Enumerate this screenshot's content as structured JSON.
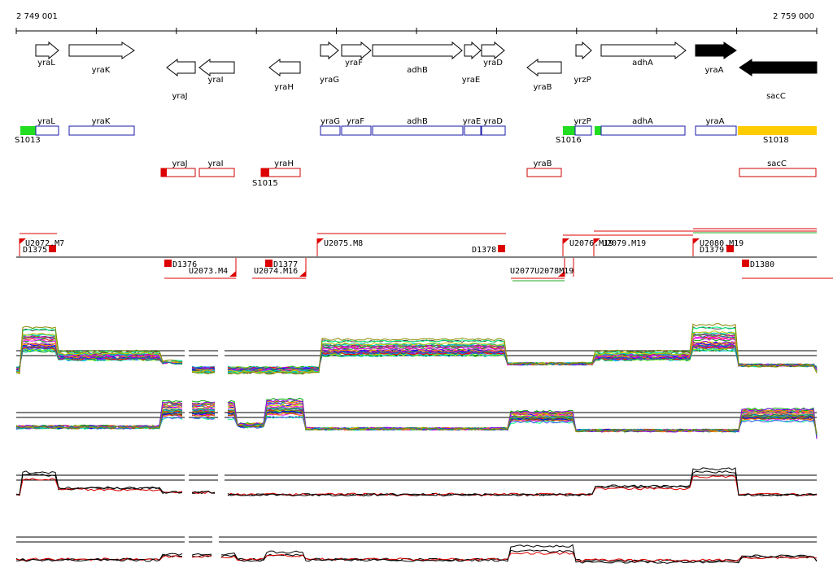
{
  "ruler": {
    "start": "2 749 001",
    "end": "2 759 000"
  },
  "genes": [
    {
      "name": "yraL",
      "strand": "+",
      "color": "white"
    },
    {
      "name": "yraK",
      "strand": "+",
      "color": "white"
    },
    {
      "name": "yraJ",
      "strand": "-",
      "color": "white"
    },
    {
      "name": "yraI",
      "strand": "-",
      "color": "white"
    },
    {
      "name": "yraH",
      "strand": "-",
      "color": "white"
    },
    {
      "name": "yraG",
      "strand": "+",
      "color": "white"
    },
    {
      "name": "yraF",
      "strand": "+",
      "color": "white"
    },
    {
      "name": "adhB",
      "strand": "+",
      "color": "white"
    },
    {
      "name": "yraE",
      "strand": "+",
      "color": "white"
    },
    {
      "name": "yraD",
      "strand": "+",
      "color": "white"
    },
    {
      "name": "yraB",
      "strand": "-",
      "color": "white"
    },
    {
      "name": "yrzP",
      "strand": "+",
      "color": "white"
    },
    {
      "name": "adhA",
      "strand": "+",
      "color": "white"
    },
    {
      "name": "yraA",
      "strand": "+",
      "color": "black"
    },
    {
      "name": "sacC",
      "strand": "-",
      "color": "black"
    }
  ],
  "plus_features": {
    "boxes": [
      "yraL",
      "yraK",
      "yraG",
      "yraF",
      "adhB",
      "yraE",
      "yraD",
      "yrzP",
      "adhA",
      "yraA"
    ],
    "sites": [
      "S1013",
      "S1016",
      "S1018"
    ]
  },
  "minus_features": {
    "boxes": [
      "yraJ",
      "yraI",
      "yraH",
      "yraB",
      "sacC"
    ],
    "sites": [
      "S1015"
    ]
  },
  "transcript_labels": [
    "U2072.M7",
    "D1375",
    "D1376",
    "U2073.M4",
    "D1377",
    "U2074.M16",
    "U2075.M8",
    "D1378",
    "U2077U2078M19",
    "U2076.M19",
    "U2079.M19",
    "U2080.M19",
    "D1379",
    "D1380"
  ],
  "colors": {
    "gene_outline": "#000000",
    "feature_plus": "#1a1aaa",
    "feature_minus": "#cc0000",
    "site_green": "#22dd22",
    "site_orange": "#ffcc00",
    "transcript": "#dd0000",
    "transcript_green": "#22aa22"
  }
}
